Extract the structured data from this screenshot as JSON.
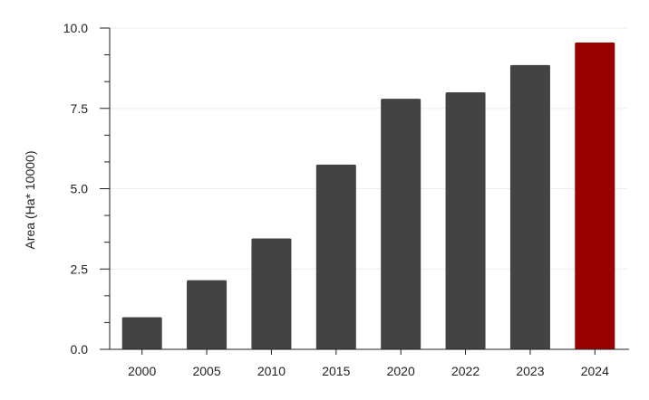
{
  "chart_data": {
    "type": "bar",
    "title": "",
    "xlabel": "",
    "ylabel": "Area (Ha* 10000)",
    "categories": [
      "2000",
      "2005",
      "2010",
      "2015",
      "2020",
      "2022",
      "2023",
      "2024"
    ],
    "values": [
      1.0,
      2.15,
      3.45,
      5.75,
      7.8,
      8.0,
      8.85,
      9.55
    ],
    "ylim": [
      0,
      10
    ],
    "yticks": [
      0,
      2.5,
      5,
      7.5,
      10
    ],
    "ytick_labels": [
      "0.0",
      "2.5",
      "5.0",
      "7.5",
      "10.0"
    ],
    "grid": true,
    "colors": {
      "bar": "#434343",
      "highlight": "#990000",
      "grid": "#eeeeee",
      "axis": "#222222"
    },
    "highlight_index": 7
  }
}
